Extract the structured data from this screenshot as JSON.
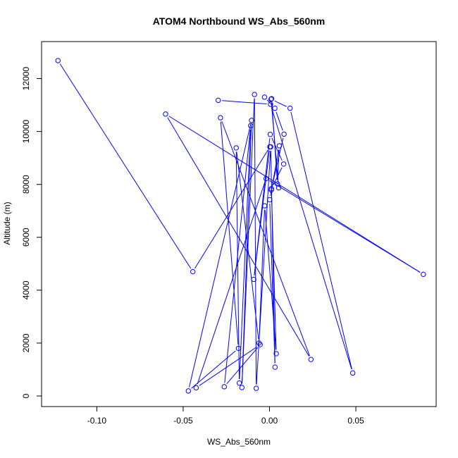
{
  "chart_data": {
    "type": "line",
    "title": "ATOM4 Northbound WS_Abs_560nm",
    "xlabel": "WS_Abs_560nm",
    "ylabel": "Altitude (m)",
    "xlim": [
      -0.132,
      0.0965
    ],
    "ylim": [
      -400,
      13400
    ],
    "x_ticks": [
      -0.1,
      -0.05,
      0.0,
      0.05
    ],
    "x_tick_labels": [
      "-0.10",
      "-0.05",
      "0.00",
      "0.05"
    ],
    "y_ticks": [
      0,
      2000,
      4000,
      6000,
      8000,
      10000,
      12000
    ],
    "y_tick_labels": [
      "0",
      "2000",
      "4000",
      "6000",
      "8000",
      "10000",
      "12000"
    ],
    "series": [
      {
        "marker": "open-circle",
        "line_color": "#0000ff",
        "points": [
          {
            "x": -0.1225,
            "y": 12680
          },
          {
            "x": -0.0444,
            "y": 4700
          },
          {
            "x": 0.0002,
            "y": 9420
          },
          {
            "x": -0.0091,
            "y": 4410
          },
          {
            "x": 0.0004,
            "y": 9890
          },
          {
            "x": 0.0082,
            "y": 8770
          },
          {
            "x": 0.0011,
            "y": 7840
          },
          {
            "x": 0.0039,
            "y": 1600
          },
          {
            "x": -0.0028,
            "y": 7190
          },
          {
            "x": -0.0061,
            "y": 2000
          },
          {
            "x": -0.0193,
            "y": 9380
          },
          {
            "x": -0.0175,
            "y": 490
          },
          {
            "x": -0.0109,
            "y": 10220
          },
          {
            "x": -0.0262,
            "y": 350
          },
          {
            "x": -0.0054,
            "y": 1940
          },
          {
            "x": -0.0425,
            "y": 310
          },
          {
            "x": -0.002,
            "y": 8220
          },
          {
            "x": 0.0891,
            "y": 4600
          },
          {
            "x": -0.0602,
            "y": 10660
          },
          {
            "x": 0.024,
            "y": 1380
          },
          {
            "x": -0.0284,
            "y": 10520
          },
          {
            "x": -0.018,
            "y": 1800
          },
          {
            "x": -0.047,
            "y": 190
          },
          {
            "x": -0.0104,
            "y": 10420
          },
          {
            "x": -0.016,
            "y": 320
          },
          {
            "x": -0.0087,
            "y": 11400
          },
          {
            "x": -0.0077,
            "y": 290
          },
          {
            "x": 0.0007,
            "y": 9420
          },
          {
            "x": 0.0032,
            "y": 1090
          },
          {
            "x": 0.0001,
            "y": 7420
          },
          {
            "x": 0.0057,
            "y": 9460
          },
          {
            "x": 0.0046,
            "y": 8020
          },
          {
            "x": 0.0012,
            "y": 11240
          },
          {
            "x": -0.0029,
            "y": 11300
          },
          {
            "x": 0.0031,
            "y": 10880
          },
          {
            "x": 0.0084,
            "y": 9900
          },
          {
            "x": 0.001,
            "y": 7790
          },
          {
            "x": 0.0053,
            "y": 7870
          },
          {
            "x": 0.0009,
            "y": 11220
          },
          {
            "x": 0.0119,
            "y": 10880
          },
          {
            "x": 0.0482,
            "y": 870
          },
          {
            "x": 0.0006,
            "y": 11030
          },
          {
            "x": -0.0297,
            "y": 11180
          }
        ]
      }
    ]
  },
  "colors": {
    "series": "#0000ff",
    "axis": "#000000",
    "background": "#ffffff"
  }
}
